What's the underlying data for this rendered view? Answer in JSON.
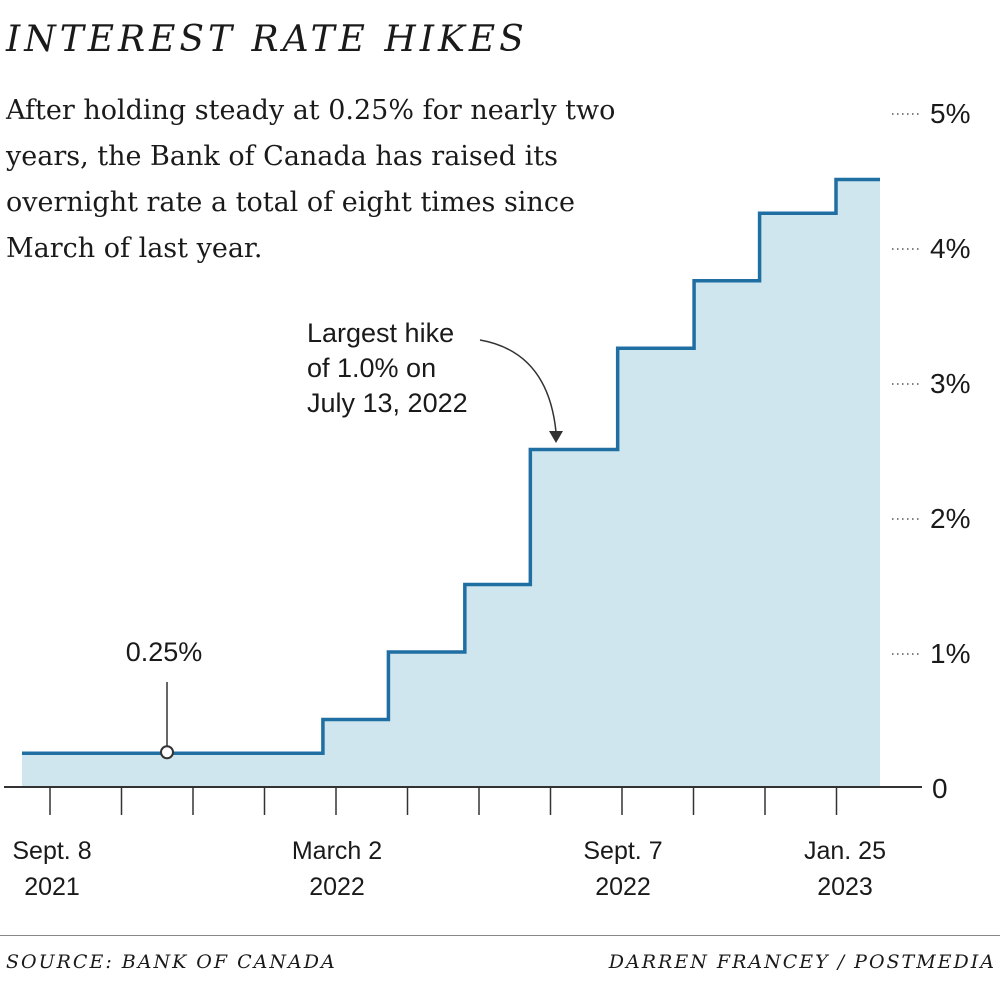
{
  "title": "INTEREST RATE HIKES",
  "subtitle": "After holding steady at 0.25% for nearly two years, the Bank of Canada has raised its overnight rate a total of eight times since March of last year.",
  "source": "SOURCE: BANK OF CANADA",
  "credit": "DARREN FRANCEY / POSTMEDIA",
  "colors": {
    "line": "#1f6fa3",
    "fill": "#cfe6ee",
    "axis": "#333333",
    "text": "#1a1a1a"
  },
  "chart_data": {
    "type": "area",
    "step": true,
    "x_labels": [
      {
        "line1": "Sept. 8",
        "line2": "2021"
      },
      {
        "line1": "March 2",
        "line2": "2022"
      },
      {
        "line1": "Sept. 7",
        "line2": "2022"
      },
      {
        "line1": "Jan. 25",
        "line2": "2023"
      }
    ],
    "series": [
      {
        "values": [
          {
            "x": "2021-09-08",
            "y": 0.25
          },
          {
            "x": "2022-03-02",
            "y": 0.5
          },
          {
            "x": "2022-04-13",
            "y": 1.0
          },
          {
            "x": "2022-06-01",
            "y": 1.5
          },
          {
            "x": "2022-07-13",
            "y": 2.5
          },
          {
            "x": "2022-09-07",
            "y": 3.25
          },
          {
            "x": "2022-10-26",
            "y": 3.75
          },
          {
            "x": "2022-12-07",
            "y": 4.25
          },
          {
            "x": "2023-01-25",
            "y": 4.5
          }
        ]
      }
    ],
    "y_ticks": [
      "0",
      "1%",
      "2%",
      "3%",
      "4%",
      "5%"
    ],
    "ylim": [
      0,
      5
    ],
    "annotations": [
      {
        "text": "0.25%",
        "x": "2021-09-08",
        "y": 0.25
      },
      {
        "text": "Largest hike of 1.0% on July 13, 2022",
        "lines": [
          "Largest hike",
          "of 1.0% on",
          "July 13, 2022"
        ],
        "x": "2022-07-13",
        "y": 2.5
      }
    ],
    "grid": false
  }
}
